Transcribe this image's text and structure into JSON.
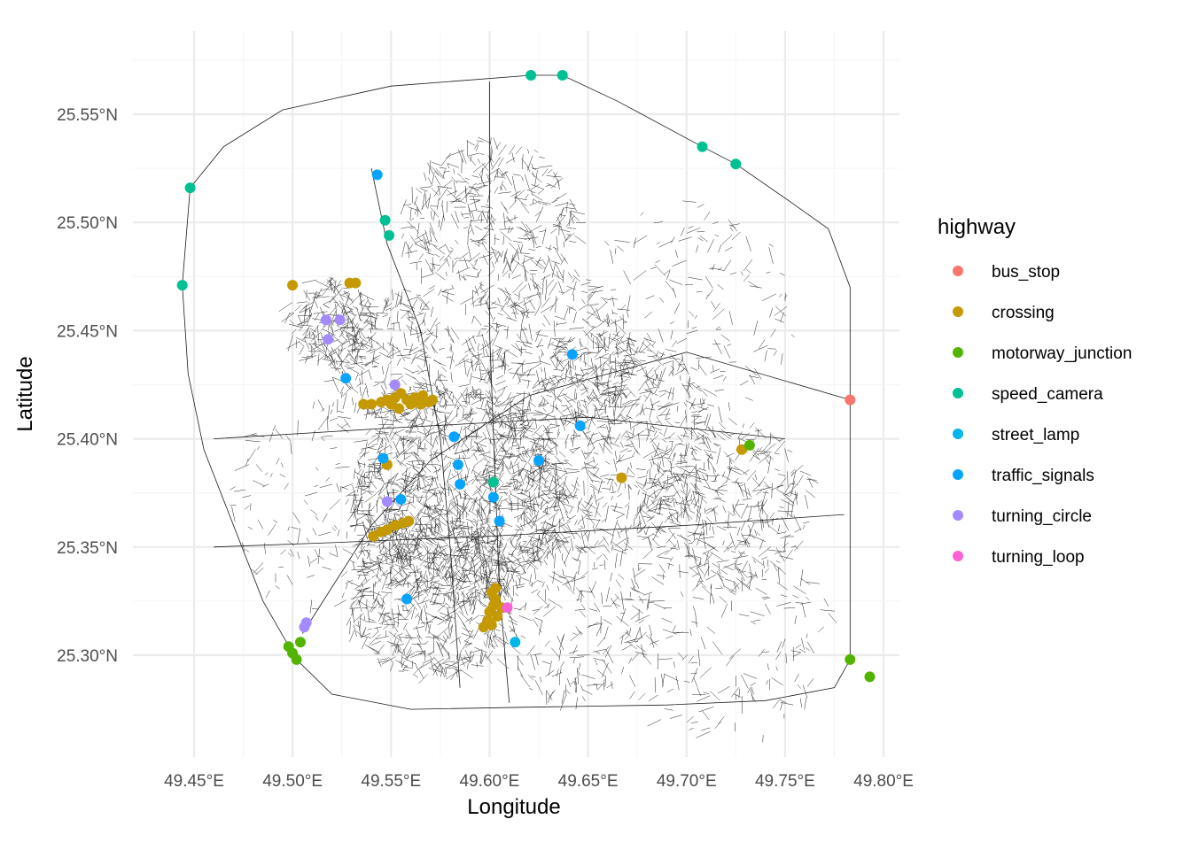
{
  "chart_data": {
    "type": "scatter",
    "xlabel": "Longitude",
    "ylabel": "Latitude",
    "xlim": [
      49.425,
      49.81
    ],
    "ylim": [
      25.265,
      25.582
    ],
    "x_ticks": [
      {
        "value": 49.45,
        "label": "49.45°E"
      },
      {
        "value": 49.5,
        "label": "49.50°E"
      },
      {
        "value": 49.55,
        "label": "49.55°E"
      },
      {
        "value": 49.6,
        "label": "49.60°E"
      },
      {
        "value": 49.65,
        "label": "49.65°E"
      },
      {
        "value": 49.7,
        "label": "49.70°E"
      },
      {
        "value": 49.75,
        "label": "49.75°E"
      },
      {
        "value": 49.8,
        "label": "49.80°E"
      }
    ],
    "y_ticks": [
      {
        "value": 25.3,
        "label": "25.30°N"
      },
      {
        "value": 25.35,
        "label": "25.35°N"
      },
      {
        "value": 25.4,
        "label": "25.40°N"
      },
      {
        "value": 25.45,
        "label": "25.45°N"
      },
      {
        "value": 25.5,
        "label": "25.50°N"
      },
      {
        "value": 25.55,
        "label": "25.55°N"
      }
    ],
    "grid": true,
    "legend": {
      "title": "highway",
      "position": "right"
    },
    "series": [
      {
        "name": "bus_stop",
        "color": "#F8766D",
        "points": [
          [
            49.783,
            25.418
          ]
        ]
      },
      {
        "name": "crossing",
        "color": "#C49A00",
        "points": [
          [
            49.5,
            25.471
          ],
          [
            49.529,
            25.472
          ],
          [
            49.532,
            25.472
          ],
          [
            49.536,
            25.416
          ],
          [
            49.54,
            25.416
          ],
          [
            49.545,
            25.417
          ],
          [
            49.548,
            25.418
          ],
          [
            49.552,
            25.419
          ],
          [
            49.555,
            25.421
          ],
          [
            49.558,
            25.418
          ],
          [
            49.562,
            25.419
          ],
          [
            49.566,
            25.42
          ],
          [
            49.569,
            25.417
          ],
          [
            49.571,
            25.418
          ],
          [
            49.55,
            25.416
          ],
          [
            49.56,
            25.416
          ],
          [
            49.565,
            25.416
          ],
          [
            49.554,
            25.414
          ],
          [
            49.548,
            25.388
          ],
          [
            49.541,
            25.355
          ],
          [
            49.545,
            25.357
          ],
          [
            49.548,
            25.358
          ],
          [
            49.552,
            25.36
          ],
          [
            49.556,
            25.361
          ],
          [
            49.559,
            25.362
          ],
          [
            49.601,
            25.329
          ],
          [
            49.603,
            25.326
          ],
          [
            49.602,
            25.323
          ],
          [
            49.6,
            25.32
          ],
          [
            49.604,
            25.318
          ],
          [
            49.599,
            25.316
          ],
          [
            49.597,
            25.313
          ],
          [
            49.601,
            25.314
          ],
          [
            49.606,
            25.322
          ],
          [
            49.603,
            25.331
          ],
          [
            49.667,
            25.382
          ],
          [
            49.728,
            25.395
          ]
        ]
      },
      {
        "name": "motorway_junction",
        "color": "#53B400",
        "points": [
          [
            49.498,
            25.304
          ],
          [
            49.5,
            25.301
          ],
          [
            49.502,
            25.298
          ],
          [
            49.504,
            25.306
          ],
          [
            49.732,
            25.397
          ],
          [
            49.783,
            25.298
          ],
          [
            49.793,
            25.29
          ]
        ]
      },
      {
        "name": "speed_camera",
        "color": "#00C094",
        "points": [
          [
            49.621,
            25.568
          ],
          [
            49.637,
            25.568
          ],
          [
            49.708,
            25.535
          ],
          [
            49.725,
            25.527
          ],
          [
            49.448,
            25.516
          ],
          [
            49.444,
            25.471
          ],
          [
            49.547,
            25.501
          ],
          [
            49.549,
            25.494
          ],
          [
            49.602,
            25.38
          ]
        ]
      },
      {
        "name": "street_lamp",
        "color": "#00B6EB",
        "points": [
          [
            49.613,
            25.306
          ]
        ]
      },
      {
        "name": "traffic_signals",
        "color": "#06A4FF",
        "points": [
          [
            49.543,
            25.522
          ],
          [
            49.527,
            25.428
          ],
          [
            49.642,
            25.439
          ],
          [
            49.646,
            25.406
          ],
          [
            49.582,
            25.401
          ],
          [
            49.546,
            25.391
          ],
          [
            49.584,
            25.388
          ],
          [
            49.625,
            25.39
          ],
          [
            49.585,
            25.379
          ],
          [
            49.602,
            25.373
          ],
          [
            49.555,
            25.372
          ],
          [
            49.605,
            25.362
          ],
          [
            49.558,
            25.326
          ]
        ]
      },
      {
        "name": "turning_circle",
        "color": "#A58AFF",
        "points": [
          [
            49.517,
            25.455
          ],
          [
            49.524,
            25.455
          ],
          [
            49.518,
            25.446
          ],
          [
            49.552,
            25.425
          ],
          [
            49.548,
            25.371
          ],
          [
            49.507,
            25.315
          ],
          [
            49.506,
            25.313
          ]
        ]
      },
      {
        "name": "turning_loop",
        "color": "#FB61D7",
        "points": [
          [
            49.609,
            25.322
          ]
        ]
      }
    ]
  }
}
